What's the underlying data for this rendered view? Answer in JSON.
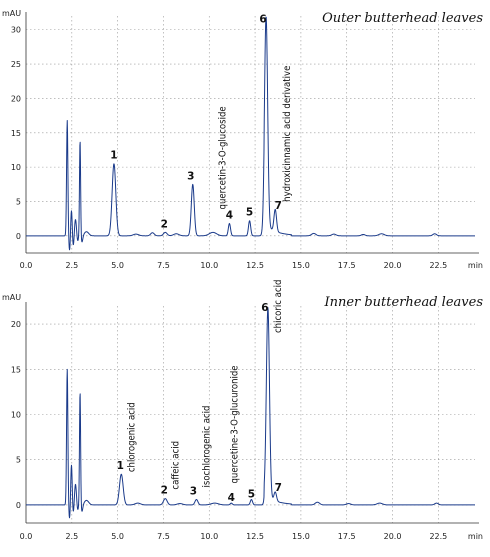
{
  "chart_data": [
    {
      "type": "line",
      "title": "Outer butterhead leaves",
      "ylabel": "mAU",
      "xlabel": "min",
      "xlim": [
        0,
        24.5
      ],
      "ylim": [
        -2.5,
        32
      ],
      "x_ticks": [
        "0.0",
        "2.5",
        "5.0",
        "7.5",
        "10.0",
        "12.5",
        "15.0",
        "17.5",
        "20.0",
        "22.5"
      ],
      "y_ticks": [
        "0",
        "5",
        "10",
        "15",
        "20",
        "25",
        "30"
      ],
      "grid": true,
      "peaks": [
        {
          "label": "1",
          "x": 4.8,
          "y": 10.5
        },
        {
          "label": "2",
          "x": 7.6,
          "y": 0.5
        },
        {
          "label": "3",
          "x": 9.1,
          "y": 7.5
        },
        {
          "label": "4",
          "x": 11.1,
          "y": 1.8
        },
        {
          "label": "5",
          "x": 12.2,
          "y": 2.2
        },
        {
          "label": "6",
          "x": 13.1,
          "y": 30.5
        },
        {
          "label": "7",
          "x": 13.6,
          "y": 3.2
        }
      ],
      "annotations": [
        {
          "text": "quercetin-3-O-glucoside",
          "peak": "4"
        },
        {
          "text": "hydroxicinnamic acid derivative",
          "peak": "7"
        }
      ]
    },
    {
      "type": "line",
      "title": "Inner butterhead leaves",
      "ylabel": "mAU",
      "xlabel": "min",
      "xlim": [
        0,
        24.5
      ],
      "ylim": [
        -2,
        22
      ],
      "x_ticks": [
        "0.0",
        "2.5",
        "5.0",
        "7.5",
        "10.0",
        "12.5",
        "15.0",
        "17.5",
        "20.0",
        "22.5"
      ],
      "y_ticks": [
        "0",
        "5",
        "10",
        "15",
        "20"
      ],
      "grid": true,
      "peaks": [
        {
          "label": "1",
          "x": 5.2,
          "y": 3.4
        },
        {
          "label": "2",
          "x": 7.6,
          "y": 0.7
        },
        {
          "label": "3",
          "x": 9.3,
          "y": 0.6
        },
        {
          "label": "4",
          "x": 11.2,
          "y": 0.2
        },
        {
          "label": "5",
          "x": 12.3,
          "y": 0.6
        },
        {
          "label": "6",
          "x": 13.2,
          "y": 21.0
        },
        {
          "label": "7",
          "x": 13.6,
          "y": 1.0
        }
      ],
      "annotations": [
        {
          "text": "chlorogenic acid",
          "peak": "1"
        },
        {
          "text": "caffeic acid",
          "peak": "2"
        },
        {
          "text": "isochlorogenic acid",
          "peak": "3"
        },
        {
          "text": "quercetine-3-O-glucuronide",
          "peak": "5"
        },
        {
          "text": "chicoric acid",
          "peak": "6"
        }
      ]
    }
  ]
}
